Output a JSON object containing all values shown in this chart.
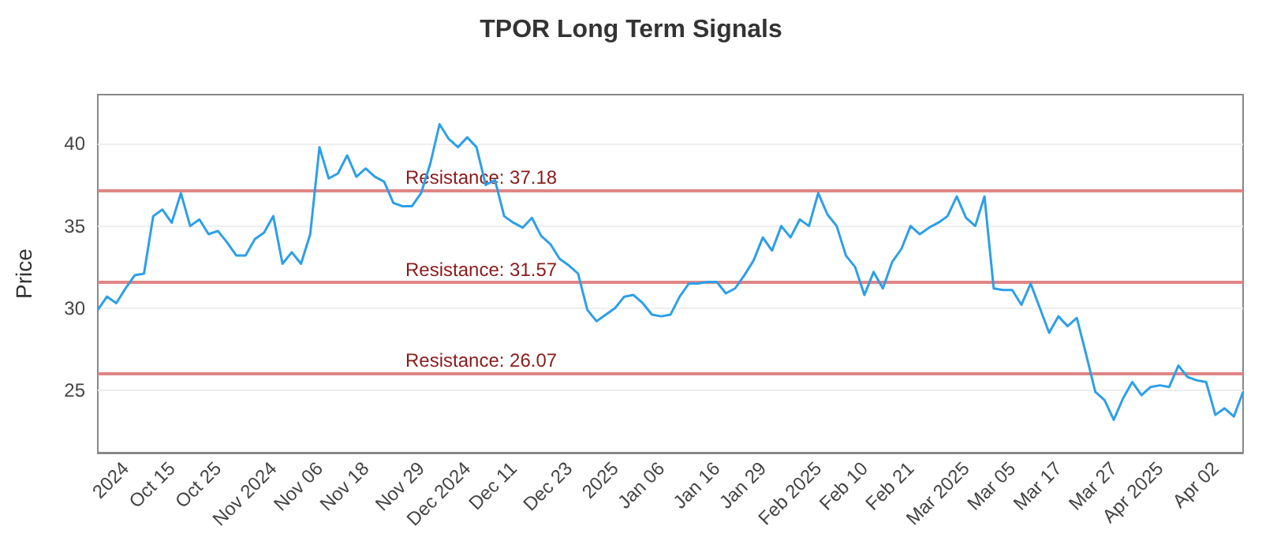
{
  "chart_data": {
    "type": "line",
    "title": "TPOR Long Term Signals",
    "ylabel": "Price",
    "categories": [
      null,
      null,
      null,
      "2024",
      null,
      null,
      null,
      null,
      "Oct 15",
      null,
      null,
      null,
      null,
      "Oct 25",
      null,
      null,
      null,
      null,
      null,
      "Nov 2024",
      null,
      null,
      null,
      null,
      "Nov 06",
      null,
      null,
      null,
      null,
      "Nov 18",
      null,
      null,
      null,
      null,
      null,
      "Nov 29",
      null,
      null,
      null,
      null,
      "Dec 2024",
      null,
      null,
      null,
      null,
      "Dec 11",
      null,
      null,
      null,
      null,
      null,
      "Dec 23",
      null,
      null,
      null,
      null,
      "2025",
      null,
      null,
      null,
      null,
      "Jan 06",
      null,
      null,
      null,
      null,
      null,
      "Jan 16",
      null,
      null,
      null,
      null,
      "Jan 29",
      null,
      null,
      null,
      null,
      null,
      "Feb 2025",
      null,
      null,
      null,
      null,
      "Feb 10",
      null,
      null,
      null,
      null,
      "Feb 21",
      null,
      null,
      null,
      null,
      null,
      "Mar 2025",
      null,
      null,
      null,
      null,
      "Mar 05",
      null,
      null,
      null,
      null,
      "Mar 17",
      null,
      null,
      null,
      null,
      null,
      "Mar 27",
      null,
      null,
      null,
      null,
      "Apr 2025",
      null,
      null,
      null,
      null,
      null,
      "Apr 02",
      null,
      null,
      null
    ],
    "series": [
      {
        "color": "#2d9fe8",
        "values": [
          29.9,
          30.7,
          30.3,
          31.2,
          32.0,
          32.1,
          35.6,
          36.0,
          35.2,
          37.0,
          35.0,
          35.4,
          34.5,
          34.7,
          34.0,
          33.2,
          33.2,
          34.2,
          34.6,
          35.6,
          32.7,
          33.4,
          32.7,
          34.5,
          39.8,
          37.9,
          38.2,
          39.3,
          38.0,
          38.5,
          38.0,
          37.7,
          36.4,
          36.2,
          36.2,
          37.0,
          38.8,
          41.2,
          40.3,
          39.8,
          40.4,
          39.8,
          37.5,
          37.8,
          35.6,
          35.2,
          34.9,
          35.5,
          34.4,
          33.9,
          33.0,
          32.6,
          32.1,
          29.9,
          29.2,
          29.6,
          30.0,
          30.7,
          30.8,
          30.3,
          29.6,
          29.5,
          29.6,
          30.7,
          31.5,
          31.5,
          31.6,
          31.6,
          30.9,
          31.2,
          32.0,
          32.9,
          34.3,
          33.5,
          35.0,
          34.3,
          35.4,
          35.0,
          37.0,
          35.7,
          35.0,
          33.2,
          32.5,
          30.8,
          32.2,
          31.2,
          32.8,
          33.6,
          35.0,
          34.5,
          34.9,
          35.2,
          35.6,
          36.8,
          35.5,
          35.0,
          36.8,
          31.2,
          31.1,
          31.1,
          30.2,
          31.5,
          30.0,
          28.5,
          29.5,
          28.9,
          29.4,
          27.2,
          24.9,
          24.4,
          23.2,
          24.5,
          25.5,
          24.7,
          25.2,
          25.3,
          25.2,
          26.5,
          25.8,
          25.6,
          25.5,
          23.5,
          23.9,
          23.4,
          24.9
        ]
      }
    ],
    "ylim": [
      21.2,
      43
    ],
    "yticks": [
      25,
      30,
      35,
      40
    ],
    "grid": "y",
    "marker": "none",
    "line_style": "solid",
    "ref_lines": [
      {
        "axis": "y",
        "value": 37.18,
        "label": "Resistance: 37.18",
        "color": "#e08585"
      },
      {
        "axis": "y",
        "value": 31.57,
        "label": "Resistance: 31.57",
        "color": "#e08585"
      },
      {
        "axis": "y",
        "value": 26.07,
        "label": "Resistance: 26.07",
        "color": "#e08585"
      }
    ]
  }
}
